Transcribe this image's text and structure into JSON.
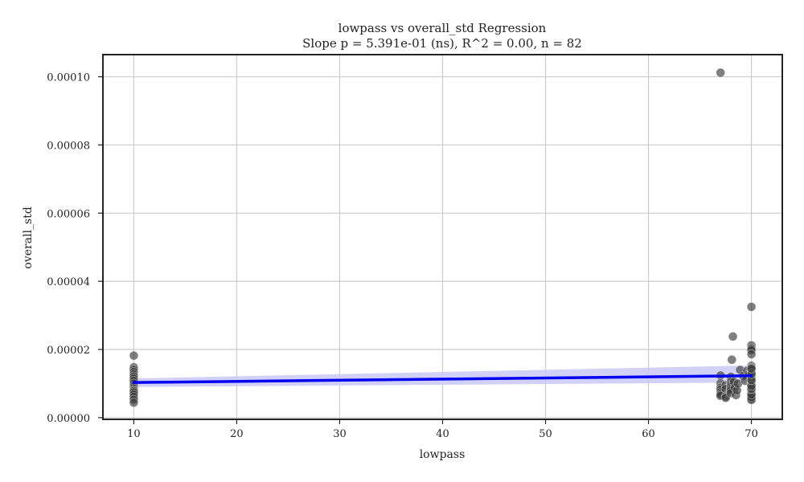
{
  "chart_data": {
    "type": "scatter",
    "title": "lowpass vs overall_std Regression",
    "subtitle": "Slope p = 5.391e-01 (ns), R^2 = 0.00, n = 82",
    "xlabel": "lowpass",
    "ylabel": "overall_std",
    "xlim": [
      7,
      73
    ],
    "ylim": [
      -5e-07,
      0.0001065
    ],
    "x_ticks": [
      10,
      20,
      30,
      40,
      50,
      60,
      70
    ],
    "x_tick_labels": [
      "10",
      "20",
      "30",
      "40",
      "50",
      "60",
      "70"
    ],
    "y_ticks": [
      0,
      2e-05,
      4e-05,
      6e-05,
      8e-05,
      0.0001
    ],
    "y_tick_labels": [
      "0.00000",
      "0.00002",
      "0.00004",
      "0.00006",
      "0.00008",
      "0.00010"
    ],
    "grid": true,
    "colors": {
      "points": "#3a3a3a",
      "regression": "#0000ee",
      "band": "#c9c9f7"
    },
    "points": [
      [
        10,
        1.82e-05
      ],
      [
        10,
        1.48e-05
      ],
      [
        10,
        1.41e-05
      ],
      [
        10,
        1.34e-05
      ],
      [
        10,
        1.27e-05
      ],
      [
        10,
        1.21e-05
      ],
      [
        10,
        1.15e-05
      ],
      [
        10,
        1.08e-05
      ],
      [
        10,
        1e-05
      ],
      [
        10,
        9.2e-06
      ],
      [
        10,
        8.6e-06
      ],
      [
        10,
        8.1e-06
      ],
      [
        10,
        7.8e-06
      ],
      [
        10,
        7.4e-06
      ],
      [
        10,
        6.8e-06
      ],
      [
        10,
        6.1e-06
      ],
      [
        10,
        5.3e-06
      ],
      [
        10,
        4.4e-06
      ],
      [
        67,
        0.0001012
      ],
      [
        67,
        1.24e-05
      ],
      [
        67,
        1.01e-05
      ],
      [
        67,
        8.8e-06
      ],
      [
        67,
        8.2e-06
      ],
      [
        67,
        7.4e-06
      ],
      [
        67,
        6.8e-06
      ],
      [
        67,
        6.4e-06
      ],
      [
        67.5,
        9.5e-06
      ],
      [
        67.5,
        8.4e-06
      ],
      [
        67.5,
        6.2e-06
      ],
      [
        67.5,
        5.8e-06
      ],
      [
        68,
        1.2e-05
      ],
      [
        68,
        1.05e-05
      ],
      [
        68,
        9.6e-06
      ],
      [
        68,
        9e-06
      ],
      [
        68,
        8.4e-06
      ],
      [
        68,
        7.9e-06
      ],
      [
        68,
        7.2e-06
      ],
      [
        68.1,
        1.7e-05
      ],
      [
        68.2,
        2.38e-05
      ],
      [
        68.3,
        1.05e-05
      ],
      [
        68.4,
        8.8e-06
      ],
      [
        68.5,
        6.6e-06
      ],
      [
        68.6,
        8e-06
      ],
      [
        68.7,
        1e-05
      ],
      [
        68.9,
        1.4e-05
      ],
      [
        69.2,
        1.22e-05
      ],
      [
        69.4,
        1.08e-05
      ],
      [
        69.6,
        1.38e-05
      ],
      [
        69.8,
        1.28e-05
      ],
      [
        70,
        3.25e-05
      ],
      [
        70,
        2.12e-05
      ],
      [
        70,
        2.03e-05
      ],
      [
        70,
        1.98e-05
      ],
      [
        70,
        1.86e-05
      ],
      [
        70,
        1.52e-05
      ],
      [
        70,
        1.46e-05
      ],
      [
        70,
        1.4e-05
      ],
      [
        70,
        1.32e-05
      ],
      [
        70,
        1.24e-05
      ],
      [
        70,
        1.18e-05
      ],
      [
        70,
        1.12e-05
      ],
      [
        70,
        1.06e-05
      ],
      [
        70,
        1e-05
      ],
      [
        70,
        9.5e-06
      ],
      [
        70,
        9e-06
      ],
      [
        70,
        8.6e-06
      ],
      [
        70,
        8.1e-06
      ],
      [
        70,
        7.7e-06
      ],
      [
        70,
        7.3e-06
      ],
      [
        70,
        7e-06
      ],
      [
        70,
        6.6e-06
      ],
      [
        70,
        6.2e-06
      ],
      [
        70,
        5.8e-06
      ],
      [
        70,
        5.5e-06
      ],
      [
        70,
        5.2e-06
      ],
      [
        70,
        6e-06
      ],
      [
        70,
        6.8e-06
      ],
      [
        70,
        8.4e-06
      ],
      [
        70,
        9.3e-06
      ],
      [
        70,
        1.1e-05
      ],
      [
        70,
        1.28e-05
      ],
      [
        70,
        1.44e-05
      ]
    ],
    "regression": {
      "x": [
        10,
        70
      ],
      "y": [
        1.03e-05,
        1.23e-05
      ],
      "ci_lower": [
        9e-06,
        1.03e-05
      ],
      "ci_upper": [
        1.15e-05,
        1.53e-05
      ]
    }
  }
}
